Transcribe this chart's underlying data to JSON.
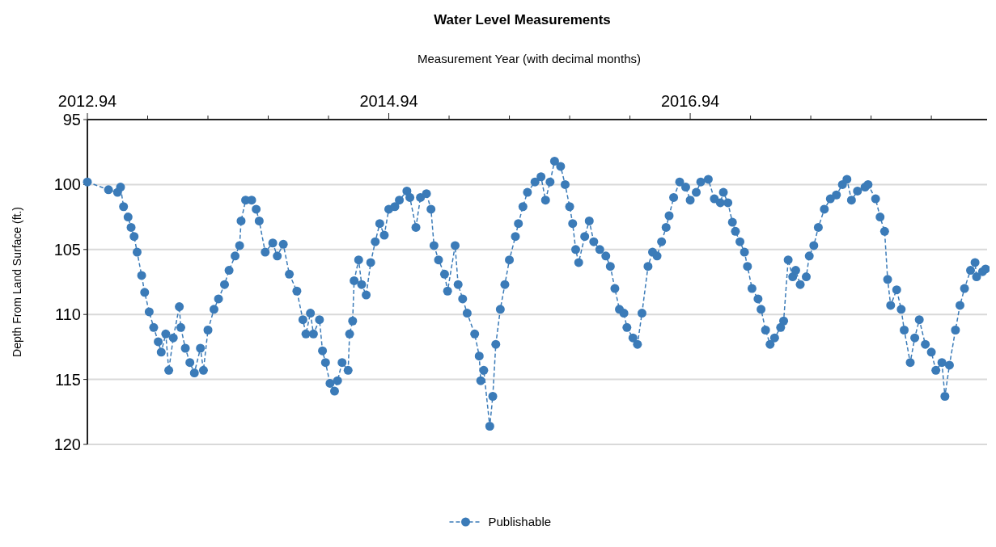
{
  "chart_data": {
    "type": "line",
    "title": "Water Level Measurements",
    "xlabel": "Measurement Year (with decimal months)",
    "ylabel": "Depth From Land Surface (ft.)",
    "xlim": [
      2012.94,
      2018.91
    ],
    "ylim": [
      120,
      95
    ],
    "xticks": [
      2012.94,
      {
        "value": 2013.34,
        "label": null
      },
      {
        "value": 2013.74,
        "label": null
      },
      {
        "value": 2014.14,
        "label": null
      },
      {
        "value": 2014.54,
        "label": null
      },
      2014.94,
      {
        "value": 2015.34,
        "label": null
      },
      {
        "value": 2015.74,
        "label": null
      },
      {
        "value": 2016.14,
        "label": null
      },
      {
        "value": 2016.54,
        "label": null
      },
      2016.94,
      {
        "value": 2017.34,
        "label": null
      },
      {
        "value": 2017.74,
        "label": null
      },
      {
        "value": 2018.14,
        "label": null
      },
      {
        "value": 2018.54,
        "label": null
      }
    ],
    "yticks": [
      95,
      100,
      105,
      110,
      115,
      120
    ],
    "grid": "y",
    "legend": "bottom",
    "marker": "circle",
    "line_style": "dashed",
    "series": [
      {
        "name": "Publishable",
        "color": "#3b7bb8",
        "x": [
          2012.94,
          2013.08,
          2013.14,
          2013.16,
          2013.18,
          2013.21,
          2013.23,
          2013.25,
          2013.27,
          2013.3,
          2013.32,
          2013.35,
          2013.38,
          2013.41,
          2013.43,
          2013.46,
          2013.48,
          2013.51,
          2013.55,
          2013.56,
          2013.59,
          2013.62,
          2013.65,
          2013.69,
          2013.71,
          2013.74,
          2013.78,
          2013.81,
          2013.85,
          2013.88,
          2013.92,
          2013.95,
          2013.96,
          2013.99,
          2014.03,
          2014.06,
          2014.08,
          2014.12,
          2014.17,
          2014.2,
          2014.24,
          2014.28,
          2014.33,
          2014.37,
          2014.39,
          2014.42,
          2014.44,
          2014.48,
          2014.5,
          2014.52,
          2014.55,
          2014.58,
          2014.6,
          2014.63,
          2014.67,
          2014.68,
          2014.7,
          2014.71,
          2014.74,
          2014.76,
          2014.79,
          2014.82,
          2014.85,
          2014.88,
          2014.91,
          2014.94,
          2014.98,
          2015.01,
          2015.06,
          2015.08,
          2015.12,
          2015.15,
          2015.19,
          2015.22,
          2015.24,
          2015.27,
          2015.31,
          2015.33,
          2015.38,
          2015.4,
          2015.43,
          2015.46,
          2015.51,
          2015.54,
          2015.55,
          2015.57,
          2015.61,
          2015.63,
          2015.65,
          2015.68,
          2015.71,
          2015.74,
          2015.78,
          2015.8,
          2015.83,
          2015.86,
          2015.91,
          2015.95,
          2015.98,
          2016.01,
          2016.04,
          2016.08,
          2016.11,
          2016.14,
          2016.16,
          2016.18,
          2016.2,
          2016.24,
          2016.27,
          2016.3,
          2016.34,
          2016.38,
          2016.41,
          2016.44,
          2016.47,
          2016.5,
          2016.52,
          2016.56,
          2016.59,
          2016.62,
          2016.66,
          2016.69,
          2016.72,
          2016.75,
          2016.78,
          2016.8,
          2016.83,
          2016.87,
          2016.91,
          2016.94,
          2016.98,
          2017.01,
          2017.06,
          2017.1,
          2017.14,
          2017.16,
          2017.19,
          2017.22,
          2017.24,
          2017.27,
          2017.3,
          2017.32,
          2017.35,
          2017.39,
          2017.41,
          2017.44,
          2017.47,
          2017.5,
          2017.54,
          2017.56,
          2017.59,
          2017.62,
          2017.64,
          2017.67,
          2017.71,
          2017.73,
          2017.76,
          2017.79,
          2017.83,
          2017.87,
          2017.91,
          2017.95,
          2017.98,
          2018.01,
          2018.05,
          2018.1,
          2018.12,
          2018.17,
          2018.2,
          2018.23,
          2018.25,
          2018.27,
          2018.31,
          2018.34,
          2018.36,
          2018.4,
          2018.43,
          2018.46,
          2018.5,
          2018.54,
          2018.57,
          2018.61,
          2018.63,
          2018.66,
          2018.7,
          2018.73,
          2018.76,
          2018.8,
          2018.83,
          2018.84,
          2018.88,
          2018.9
        ],
        "values": [
          99.8,
          100.4,
          100.6,
          100.2,
          101.7,
          102.5,
          103.3,
          104.0,
          105.2,
          107.0,
          108.3,
          109.8,
          111.0,
          112.1,
          112.9,
          111.5,
          114.3,
          111.8,
          109.4,
          111.0,
          112.6,
          113.7,
          114.5,
          112.6,
          114.3,
          111.2,
          109.6,
          108.8,
          107.7,
          106.6,
          105.5,
          104.7,
          102.8,
          101.2,
          101.2,
          101.9,
          102.8,
          105.2,
          104.5,
          105.5,
          104.6,
          106.9,
          108.2,
          110.4,
          111.5,
          109.9,
          111.5,
          110.4,
          112.8,
          113.7,
          115.3,
          115.9,
          115.1,
          113.7,
          114.3,
          111.5,
          110.5,
          107.4,
          105.8,
          107.7,
          108.5,
          106.0,
          104.4,
          103.0,
          103.9,
          101.9,
          101.7,
          101.2,
          100.5,
          101.0,
          103.3,
          101.0,
          100.7,
          101.9,
          104.7,
          105.8,
          106.9,
          108.2,
          104.7,
          107.7,
          108.8,
          109.9,
          111.5,
          113.2,
          115.1,
          114.3,
          118.6,
          116.3,
          112.3,
          109.6,
          107.7,
          105.8,
          104.0,
          103.0,
          101.7,
          100.6,
          99.8,
          99.4,
          101.2,
          99.8,
          98.2,
          98.6,
          100.0,
          101.7,
          103.0,
          105.0,
          106.0,
          104.0,
          102.8,
          104.4,
          105.0,
          105.5,
          106.3,
          108.0,
          109.6,
          109.9,
          111.0,
          111.8,
          112.3,
          109.9,
          106.3,
          105.2,
          105.5,
          104.4,
          103.3,
          102.4,
          101.0,
          99.8,
          100.2,
          101.2,
          100.6,
          99.8,
          99.6,
          101.1,
          101.4,
          100.6,
          101.4,
          102.9,
          103.6,
          104.4,
          105.2,
          106.3,
          108.0,
          108.8,
          109.6,
          111.2,
          112.3,
          111.8,
          111.0,
          110.5,
          105.8,
          107.1,
          106.6,
          107.7,
          107.1,
          105.5,
          104.7,
          103.3,
          101.9,
          101.1,
          100.8,
          100.0,
          99.6,
          101.2,
          100.5,
          100.2,
          100.0,
          101.1,
          102.5,
          103.6,
          107.3,
          109.3,
          108.1,
          109.6,
          111.2,
          113.7,
          111.8,
          110.4,
          112.3,
          112.9,
          114.3,
          113.7,
          116.3,
          113.9,
          111.2,
          109.3,
          108.0,
          106.6,
          106.0,
          107.1,
          106.7,
          106.5
        ]
      }
    ]
  }
}
